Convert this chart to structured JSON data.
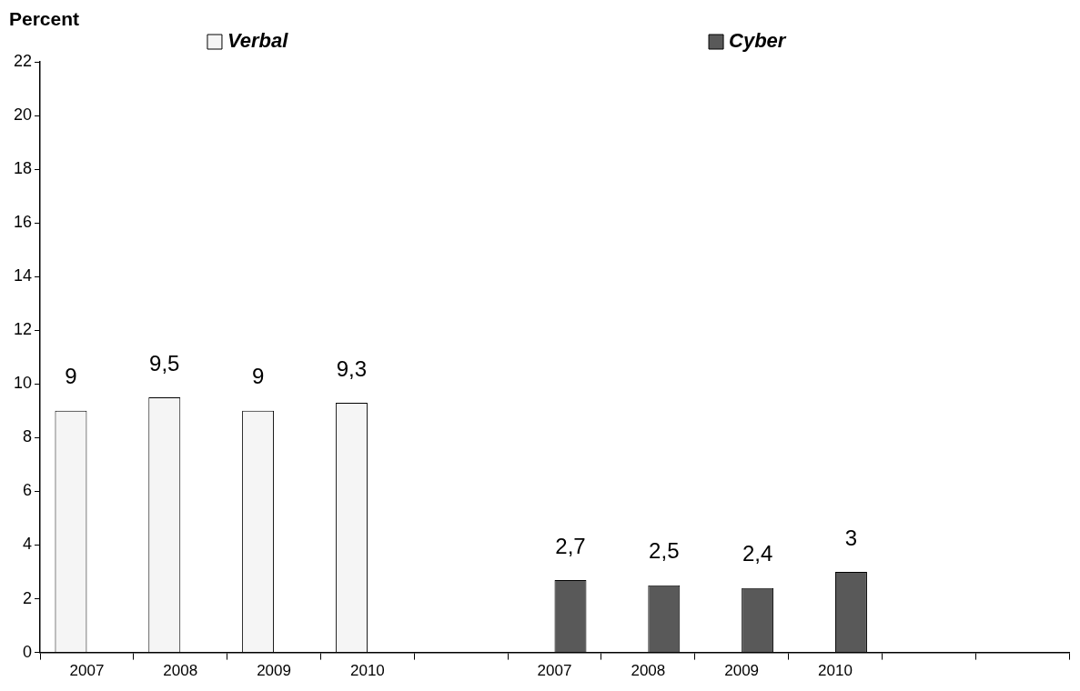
{
  "chart_data": {
    "type": "bar",
    "ylabel": "Percent",
    "categories": [
      "2007",
      "2008",
      "2009",
      "2010",
      null,
      "2007",
      "2008",
      "2009",
      "2010",
      null,
      null
    ],
    "series": [
      {
        "name": "Verbal",
        "color": "#f5f5f5",
        "values": [
          9,
          9.5,
          9,
          9.3,
          null,
          null,
          null,
          null,
          null,
          null,
          null
        ],
        "value_labels": [
          "9",
          "9,5",
          "9",
          "9,3",
          null,
          null,
          null,
          null,
          null,
          null,
          null
        ]
      },
      {
        "name": "Cyber",
        "color": "#595959",
        "values": [
          null,
          null,
          null,
          null,
          null,
          2.7,
          2.5,
          2.4,
          3,
          null,
          null
        ],
        "value_labels": [
          null,
          null,
          null,
          null,
          null,
          "2,7",
          "2,5",
          "2,4",
          "3",
          null,
          null
        ]
      }
    ],
    "ylim": [
      0,
      22
    ],
    "yticks": [
      0,
      2,
      4,
      6,
      8,
      10,
      12,
      14,
      16,
      18,
      20,
      22
    ],
    "grid": false,
    "legend": "top"
  }
}
